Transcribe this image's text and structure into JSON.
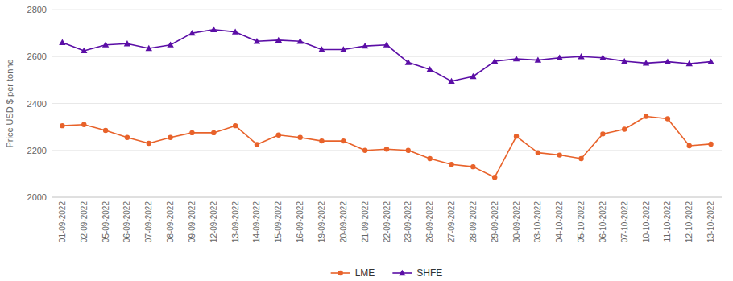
{
  "chart_data": {
    "type": "line",
    "y_label": "Price USD $ per tonne",
    "categories": [
      "01-09-2022",
      "02-09-2022",
      "05-09-2022",
      "06-09-2022",
      "07-09-2022",
      "08-09-2022",
      "09-09-2022",
      "12-09-2022",
      "13-09-2022",
      "14-09-2022",
      "15-09-2022",
      "16-09-2022",
      "19-09-2022",
      "20-09-2022",
      "21-09-2022",
      "22-09-2022",
      "23-09-2022",
      "26-09-2022",
      "27-09-2022",
      "28-09-2022",
      "29-09-2022",
      "30-09-2022",
      "03-10-2022",
      "04-10-2022",
      "05-10-2022",
      "06-10-2022",
      "07-10-2022",
      "10-10-2022",
      "11-10-2022",
      "12-10-2022",
      "13-10-2022"
    ],
    "series": [
      {
        "name": "LME",
        "color": "#e8622a",
        "marker": "circle",
        "values": [
          2305,
          2310,
          2285,
          2255,
          2230,
          2255,
          2275,
          2275,
          2305,
          2225,
          2265,
          2255,
          2240,
          2240,
          2200,
          2205,
          2200,
          2165,
          2140,
          2130,
          2085,
          2260,
          2190,
          2180,
          2165,
          2270,
          2290,
          2345,
          2335,
          2220,
          2227
        ]
      },
      {
        "name": "SHFE",
        "color": "#5b0ea6",
        "marker": "triangle",
        "values": [
          2660,
          2625,
          2650,
          2655,
          2635,
          2650,
          2700,
          2715,
          2705,
          2665,
          2670,
          2665,
          2630,
          2630,
          2645,
          2650,
          2575,
          2545,
          2495,
          2515,
          2580,
          2590,
          2585,
          2595,
          2600,
          2595,
          2580,
          2572,
          2578,
          2570,
          2578
        ]
      }
    ],
    "ylim": [
      2000,
      2800
    ],
    "yticks": [
      2000,
      2200,
      2400,
      2600,
      2800
    ],
    "grid": true,
    "legend": "bottom"
  }
}
